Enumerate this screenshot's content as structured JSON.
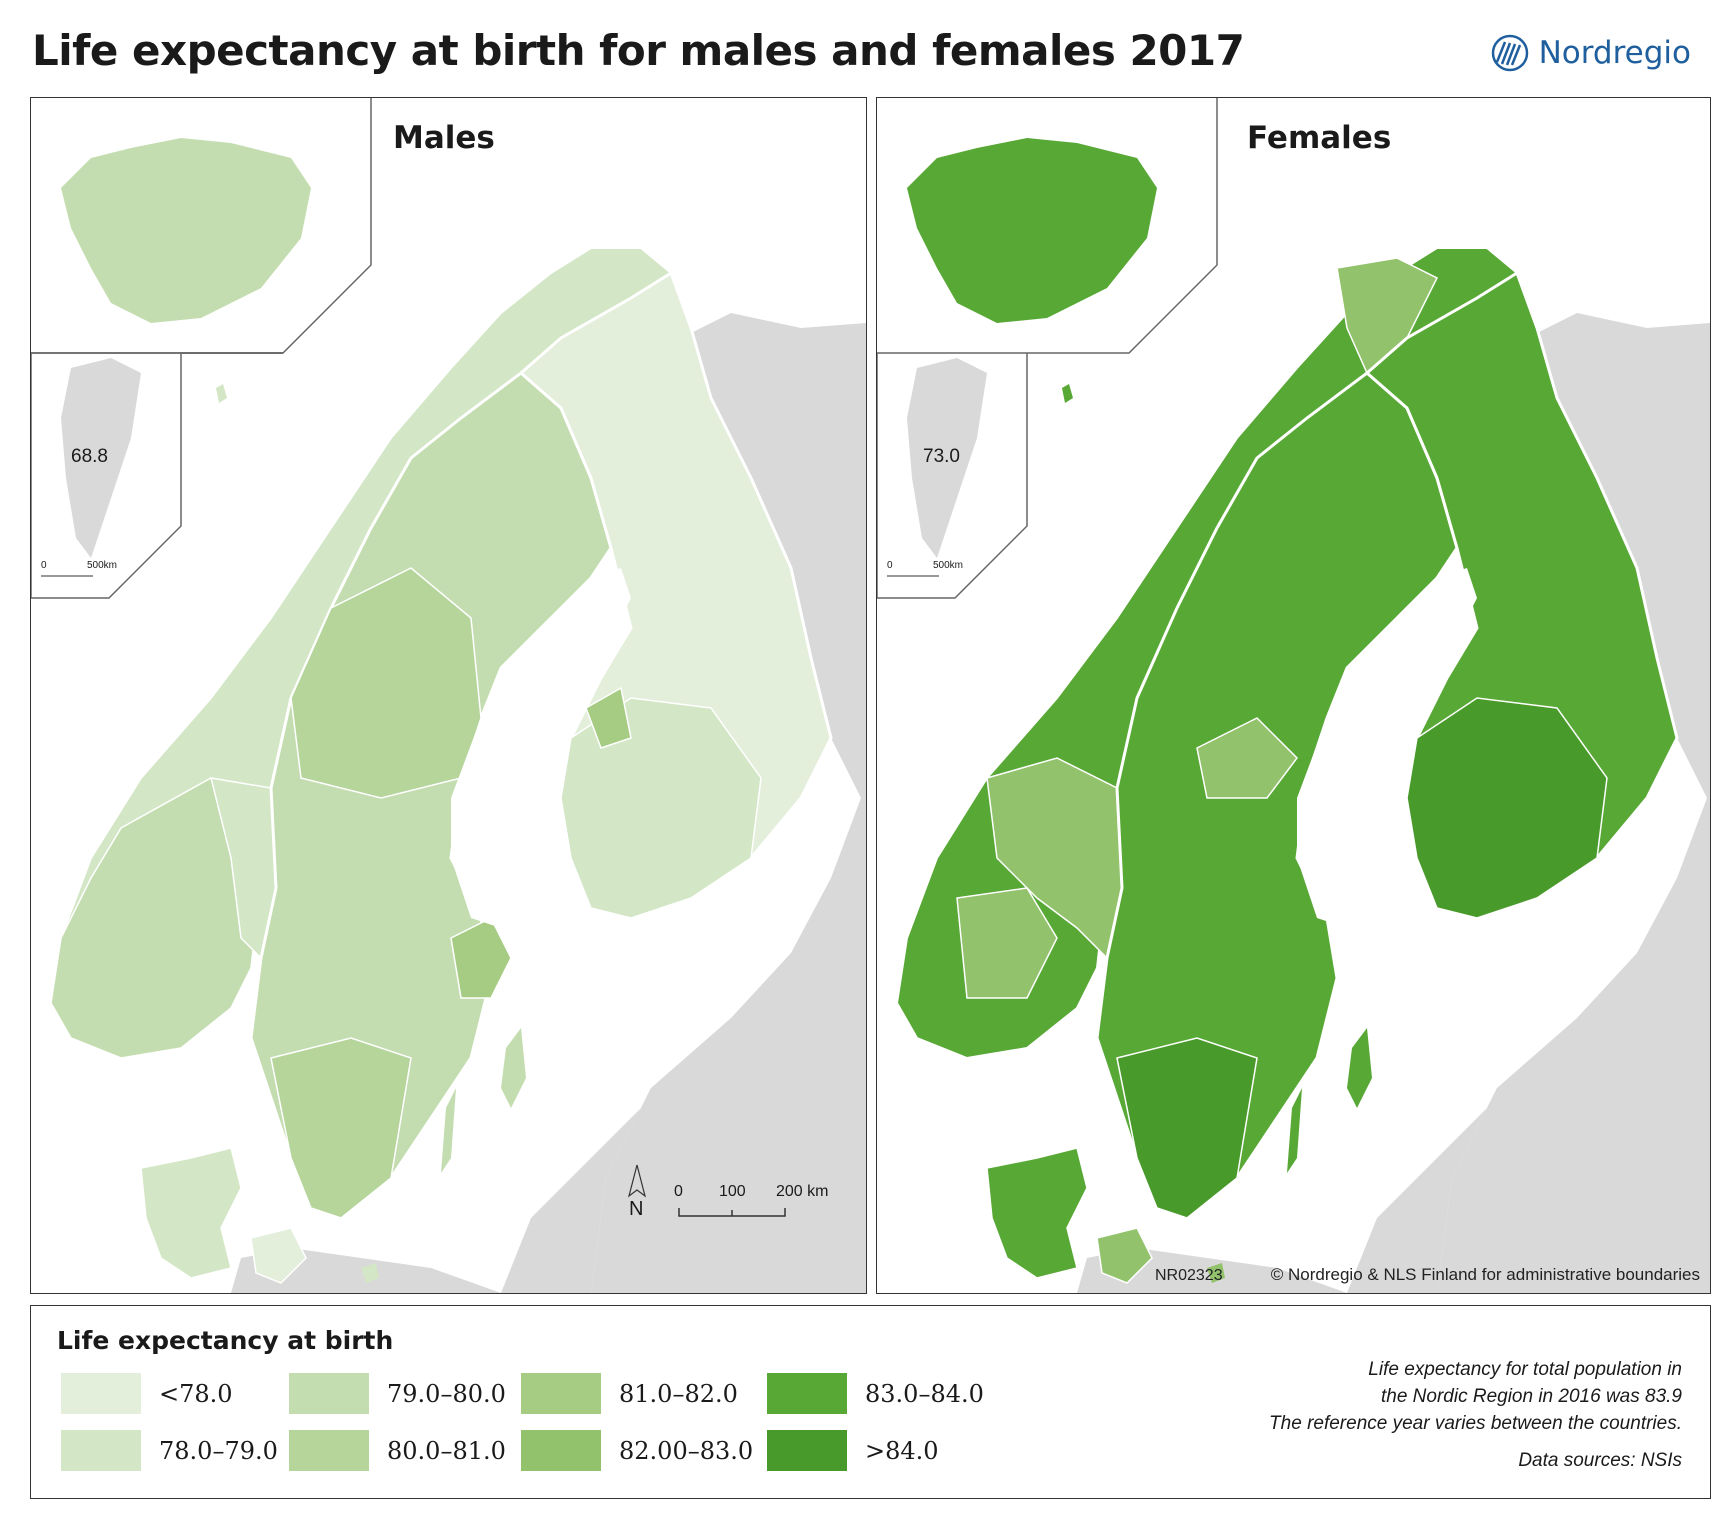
{
  "title": "Life expectancy at birth for males and females 2017",
  "logo": {
    "name": "Nordregio",
    "color": "#1f5f9e",
    "icon": "nordregio-logo-icon"
  },
  "panels": {
    "males": {
      "title": "Males",
      "greenland_value": "68.8",
      "greenland_scale": [
        "0",
        "500km"
      ]
    },
    "females": {
      "title": "Females",
      "greenland_value": "73.0",
      "greenland_scale": [
        "0",
        "500km"
      ]
    }
  },
  "map_extras": {
    "north": "N",
    "scale": [
      "0",
      "100",
      "200 km"
    ],
    "code": "NR02323",
    "credit": "© Nordregio & NLS Finland for administrative boundaries"
  },
  "legend": {
    "title": "Life expectancy at birth",
    "classes": [
      {
        "label": "<78.0",
        "color": "#e3eedb"
      },
      {
        "label": "78.0–79.0",
        "color": "#d3e6c6"
      },
      {
        "label": "79.0–80.0",
        "color": "#c3ddb0"
      },
      {
        "label": "80.0–81.0",
        "color": "#b5d59b"
      },
      {
        "label": "81.0–82.0",
        "color": "#a6cc84"
      },
      {
        "label": "82.00–83.0",
        "color": "#92c26b"
      },
      {
        "label": "83.0–84.0",
        "color": "#58a836"
      },
      {
        "label": ">84.0",
        "color": "#489a2a"
      }
    ]
  },
  "notes": [
    "Life expectancy for total population in",
    "the Nordic Region in 2016 was 83.9",
    "The reference year varies between the countries.",
    "Data sources: NSIs"
  ],
  "colors": {
    "land_other": "#d9d9d9",
    "border": "#ffffff",
    "frame": "#333333"
  }
}
